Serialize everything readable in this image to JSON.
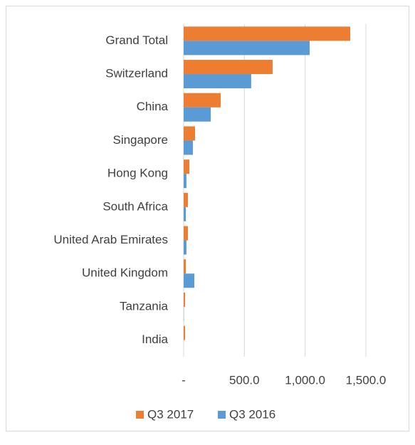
{
  "chart_data": {
    "type": "barh",
    "categories": [
      "Grand Total",
      "Switzerland",
      "China",
      "Singapore",
      "Hong Kong",
      "South Africa",
      "United Arab Emirates",
      "United Kingdom",
      "Tanzania",
      "India"
    ],
    "series": [
      {
        "name": "Q3 2017",
        "color": "#ed7d31",
        "values": [
          1371,
          732,
          305,
          94,
          47,
          35,
          35,
          18,
          12,
          12
        ]
      },
      {
        "name": "Q3 2016",
        "color": "#5b9bd5",
        "values": [
          1037,
          556,
          223,
          76,
          23,
          18,
          23,
          88,
          2,
          0
        ]
      }
    ],
    "xlim": [
      0,
      1500
    ],
    "xticks": [
      {
        "value": 0,
        "label": "-"
      },
      {
        "value": 500,
        "label": "500.0"
      },
      {
        "value": 1000,
        "label": "1,000.0"
      },
      {
        "value": 1500,
        "label": "1,500.0"
      }
    ],
    "grid": true,
    "legend": "bottom"
  }
}
